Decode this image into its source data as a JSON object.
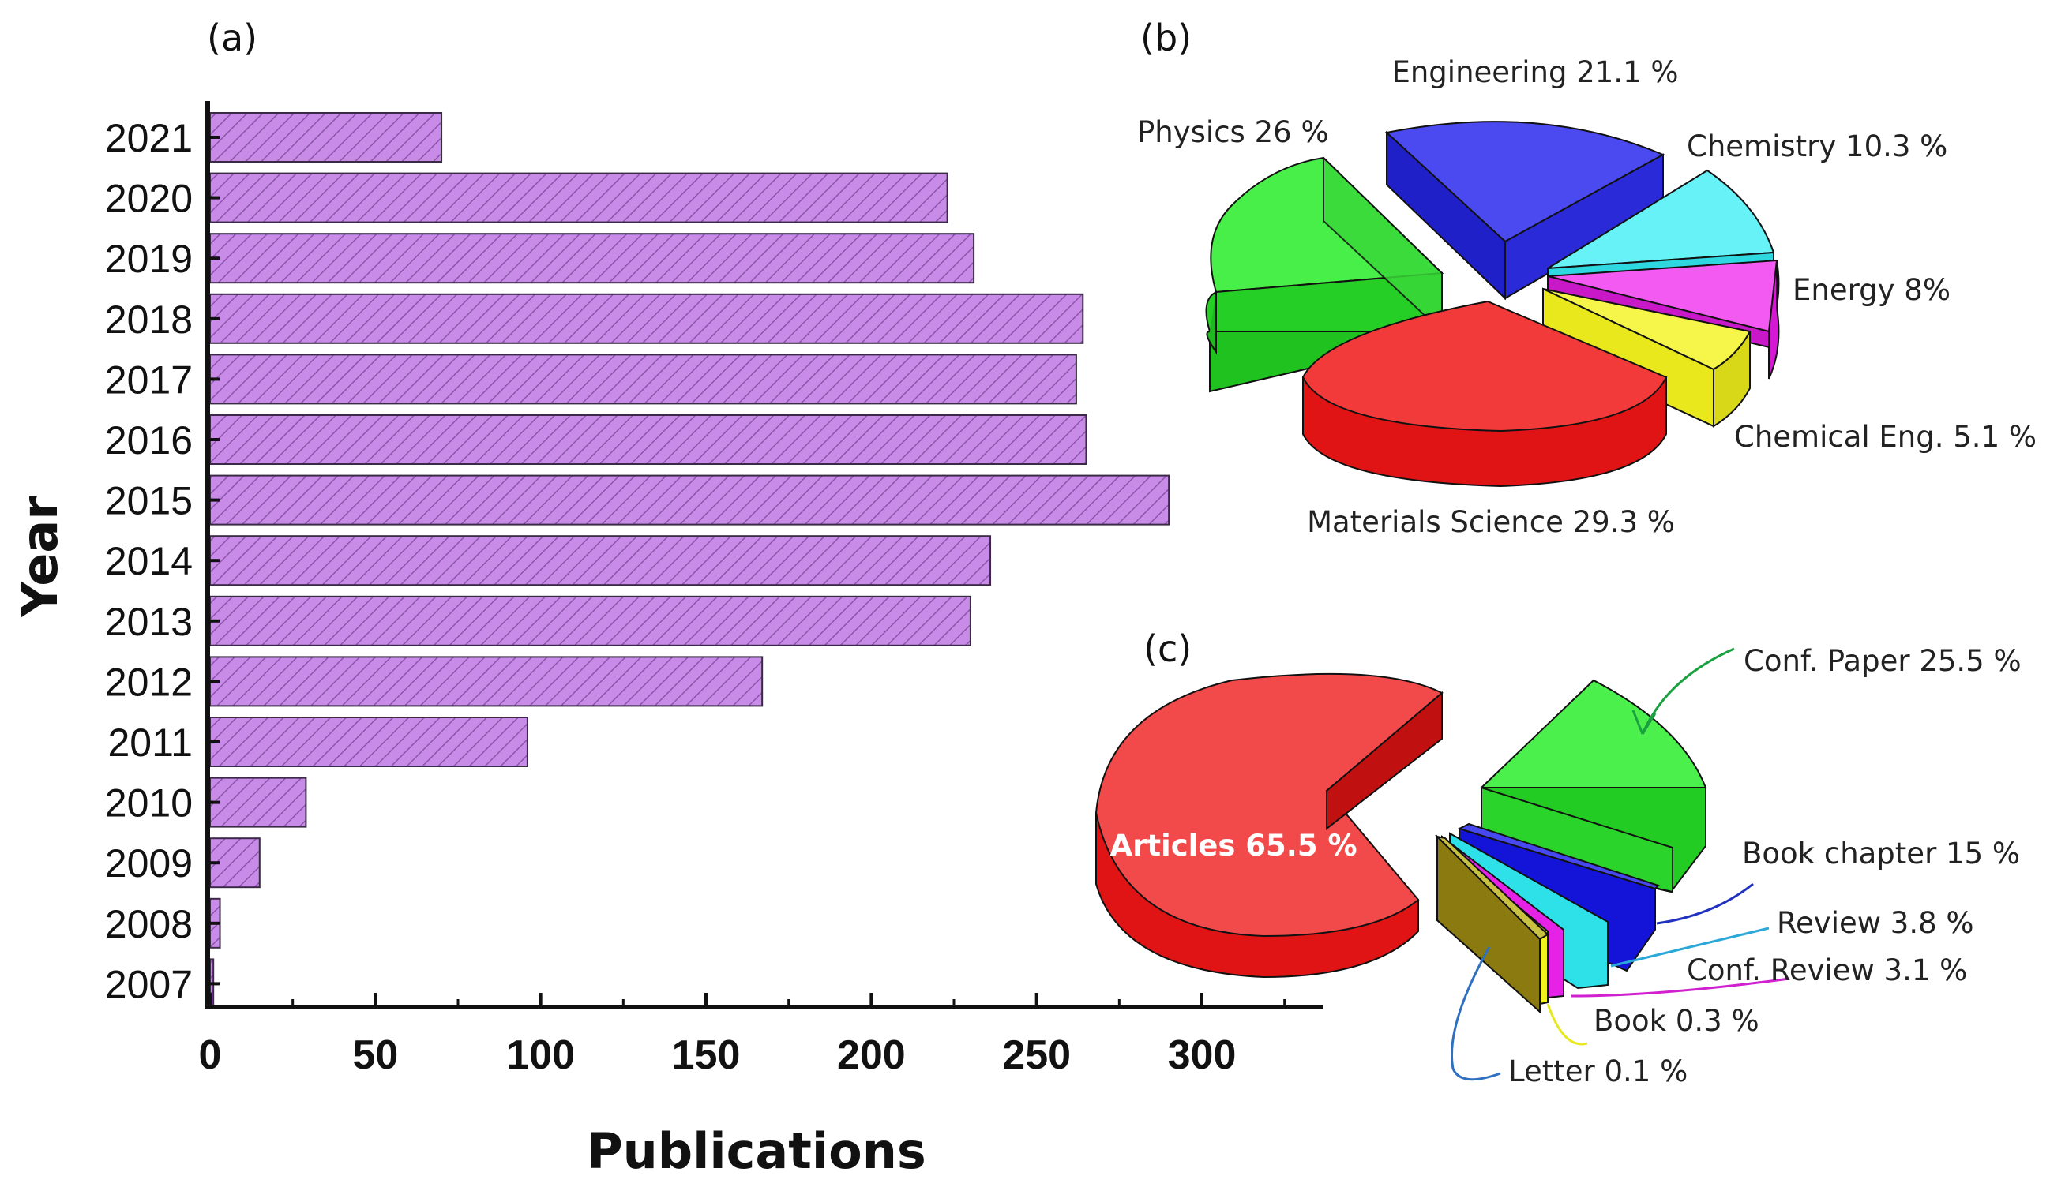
{
  "chart_data": [
    {
      "panel": "(a)",
      "type": "bar",
      "orientation": "horizontal",
      "categories": [
        "2007",
        "2008",
        "2009",
        "2010",
        "2011",
        "2012",
        "2013",
        "2014",
        "2015",
        "2016",
        "2017",
        "2018",
        "2019",
        "2020",
        "2021"
      ],
      "values": [
        1,
        3,
        15,
        29,
        96,
        167,
        230,
        236,
        290,
        265,
        262,
        264,
        231,
        223,
        70
      ],
      "xlabel": "Publications",
      "ylabel": "Year",
      "xlim": [
        0,
        325
      ],
      "xticks": [
        "0",
        "50",
        "100",
        "150",
        "200",
        "250",
        "300"
      ],
      "bar_color": "#c98be8",
      "hatch": "diagonal"
    },
    {
      "panel": "(b)",
      "type": "pie",
      "style": "3d-exploded",
      "slices": [
        {
          "label": "Engineering 21.1 %",
          "value": 21.1,
          "color": "#2a2ae6"
        },
        {
          "label": "Chemistry 10.3 %",
          "value": 10.3,
          "color": "#33e6ee"
        },
        {
          "label": "Energy 8%",
          "value": 8,
          "color": "#ee22ee"
        },
        {
          "label": "Chemical Eng. 5.1 %",
          "value": 5.1,
          "color": "#f2f21c"
        },
        {
          "label": "Materials Science 29.3 %",
          "value": 29.3,
          "color": "#ee1c1c"
        },
        {
          "label": "Physics 26 %",
          "value": 26,
          "color": "#2ee62e"
        }
      ]
    },
    {
      "panel": "(c)",
      "type": "pie",
      "style": "3d-exploded",
      "slices": [
        {
          "label": "Articles 65.5 %",
          "value": 65.5,
          "color": "#ee1c1c"
        },
        {
          "label": "Conf. Paper 25.5 %",
          "value": 25.5,
          "color": "#2ee62e"
        },
        {
          "label": "Book chapter 15 %",
          "value": 15,
          "color": "#1a1ae6"
        },
        {
          "label": "Review 3.8 %",
          "value": 3.8,
          "color": "#33e6ee"
        },
        {
          "label": "Conf. Review 3.1 %",
          "value": 3.1,
          "color": "#ee22ee"
        },
        {
          "label": "Book 0.3 %",
          "value": 0.3,
          "color": "#f2f21c"
        },
        {
          "label": "Letter 0.1 %",
          "value": 0.1,
          "color": "#8a7a10"
        }
      ]
    }
  ]
}
